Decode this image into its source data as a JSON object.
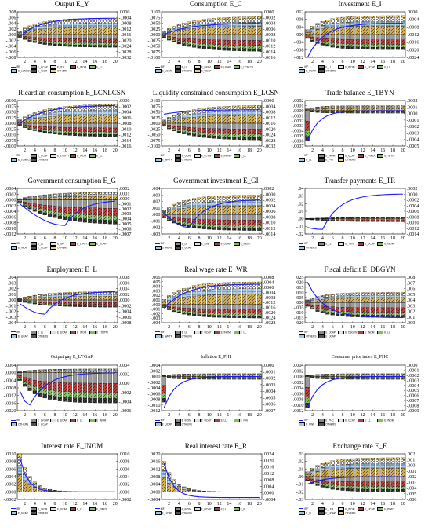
{
  "chart_data": [
    {
      "type": "bar",
      "title": "Output E_Y",
      "x": [
        2,
        4,
        6,
        8,
        10,
        12,
        14,
        16,
        18,
        20
      ],
      "ylim_left": [
        -0.008,
        0.008
      ],
      "yticks_left": [
        ".008",
        ".006",
        ".004",
        ".002",
        ".000",
        "-.002",
        "-.004",
        "-.006",
        "-.008"
      ],
      "ylim_right": [
        -0.0032,
        0.0
      ],
      "yticks_right": [
        ".0000",
        "-.0004",
        "-.0008",
        "-.0012",
        "-.0016",
        "-.0020",
        "-.0024",
        "-.0028",
        "-.0032"
      ],
      "legend": [
        "IRF",
        "E_UCAP",
        "E_ITY",
        "E_INOM",
        "E_LL",
        "E_LCNLCSN",
        "E_INOM",
        "OTHERS"
      ],
      "profile": {
        "pos": 0.0058,
        "neg": -0.0045,
        "line_start": -0.0008,
        "line_end": 0.0058,
        "line_min": -0.0008,
        "speed": 0.25
      }
    },
    {
      "type": "bar",
      "title": "Consumption E_C",
      "x": [
        2,
        4,
        6,
        8,
        10,
        12,
        14,
        16,
        18,
        20
      ],
      "ylim_left": [
        -0.01,
        0.01
      ],
      "yticks_left": [
        ".0100",
        ".0075",
        ".0050",
        ".0025",
        ".0000",
        "-.0025",
        "-.0050",
        "-.0075",
        "-.0100"
      ],
      "ylim_right": [
        -0.0016,
        0.0
      ],
      "yticks_right": [
        ".0000",
        "-.0002",
        "-.0004",
        "-.0006",
        "-.0008",
        "-.0010",
        "-.0012",
        "-.0014",
        "-.0016"
      ],
      "legend": [
        "IRF",
        "E_LL",
        "E_INOM",
        "E_UCAP",
        "E_LCNLCSN",
        "E_LCSN",
        "OTHERS",
        "E_UCAP"
      ],
      "profile": {
        "pos": 0.008,
        "neg": -0.0075,
        "line_start": 0.0,
        "line_end": 0.005,
        "line_min": -0.003,
        "speed": 0.2
      }
    },
    {
      "type": "bar",
      "title": "Investment E_I",
      "x": [
        2,
        4,
        6,
        8,
        10,
        12,
        14,
        16,
        18,
        20
      ],
      "ylim_left": [
        -0.012,
        0.012
      ],
      "yticks_left": [
        ".012",
        ".008",
        ".004",
        ".000",
        "-.004",
        "-.008",
        "-.012"
      ],
      "ylim_right": [
        -0.0024,
        0.0
      ],
      "yticks_right": [
        ".0000",
        "-.0004",
        "-.0008",
        "-.0012",
        "-.0016",
        "-.0020",
        "-.0024"
      ],
      "legend": [
        "IRF",
        "E_LL",
        "E_INOM",
        "E_UCAP",
        "E_LL",
        "E_UCAP",
        "OTHERS"
      ],
      "profile": {
        "pos": 0.01,
        "neg": -0.008,
        "line_start": -0.012,
        "line_end": 0.006,
        "line_min": -0.012,
        "speed": 0.3
      }
    },
    {
      "type": "bar",
      "title": "Ricardian consumption E_LCNLCSN",
      "x": [
        2,
        4,
        6,
        8,
        10,
        12,
        14,
        16,
        18,
        20
      ],
      "ylim_left": [
        -0.01,
        0.01
      ],
      "yticks_left": [
        ".0100",
        ".0075",
        ".0050",
        ".0025",
        ".0000",
        "-.0025",
        "-.0050",
        "-.0075",
        "-.0100"
      ],
      "ylim_right": [
        -0.0016,
        0.0
      ],
      "yticks_right": [
        ".0000",
        "-.0002",
        "-.0004",
        "-.0006",
        "-.0008",
        "-.0010",
        "-.0012",
        "-.0014",
        "-.0016"
      ],
      "legend": [
        "IRF",
        "E_UCAP",
        "E_LTRPTI",
        "E_INOM",
        "E_LL",
        "E_LCNLCSN",
        "OTHERS"
      ],
      "profile": {
        "pos": 0.0085,
        "neg": -0.006,
        "line_start": 0.0,
        "line_end": 0.008,
        "line_min": -0.0015,
        "speed": 0.2
      }
    },
    {
      "type": "bar",
      "title": "Liquidity constrained consumption E_LCSN",
      "x": [
        2,
        4,
        6,
        8,
        10,
        12,
        14,
        16,
        18,
        20
      ],
      "ylim_left": [
        -0.01,
        0.01
      ],
      "yticks_left": [
        ".0100",
        ".0075",
        ".0050",
        ".0025",
        ".0000",
        "-.0025",
        "-.0050",
        "-.0075",
        "-.0100"
      ],
      "ylim_right": [
        -0.0032,
        0.0
      ],
      "yticks_right": [
        ".0000",
        "-.0004",
        "-.0008",
        "-.0012",
        "-.0016",
        "-.0020",
        "-.0024",
        "-.0028",
        "-.0032"
      ],
      "legend": [
        "IRF",
        "E_UCAP",
        "E_LCSN",
        "E_INOM",
        "E_LL",
        "E_WRTR",
        "OTHERS"
      ],
      "profile": {
        "pos": 0.008,
        "neg": -0.0075,
        "line_start": 0.004,
        "line_end": 0.006,
        "line_min": -0.004,
        "speed": 0.2
      }
    },
    {
      "type": "bar",
      "title": "Trade balance E_TBYN",
      "x": [
        2,
        4,
        6,
        8,
        10,
        12,
        14,
        16,
        18,
        20
      ],
      "ylim_left": [
        -0.0007,
        0.0002
      ],
      "yticks_left": [
        ".0002",
        ".0001",
        ".0000",
        "-.0001",
        "-.0002",
        "-.0003",
        "-.0004",
        "-.0005",
        "-.0006",
        "-.0007"
      ],
      "ylim_right": [
        -0.0005,
        0.0002
      ],
      "yticks_right": [
        ".0002",
        ".0001",
        ".0000",
        "-.0001",
        "-.0002",
        "-.0003",
        "-.0004",
        "-.0005"
      ],
      "legend": [
        "IRF",
        "E_INOM",
        "E_UCAP",
        "E_PWEX",
        "E_TBYN",
        "E_LL",
        "E_PWI",
        "OTHERS"
      ],
      "profile": {
        "pos": 0.0001,
        "neg": -5e-05,
        "line_start": -0.0006,
        "line_end": 0.0,
        "line_min": -0.0006,
        "speed": 0.45,
        "spike": -0.0006
      }
    },
    {
      "type": "bar",
      "title": "Government consumption E_G",
      "x": [
        2,
        4,
        6,
        8,
        10,
        12,
        14,
        16,
        18,
        20
      ],
      "ylim_left": [
        -0.0012,
        0.0004
      ],
      "yticks_left": [
        ".0004",
        ".0002",
        ".0000",
        "-.0002",
        "-.0004",
        "-.0006",
        "-.0008",
        "-.0010",
        "-.0012"
      ],
      "ylim_right": [
        -0.0007,
        0.0002
      ],
      "yticks_right": [
        ".0002",
        ".0001",
        ".0000",
        "-.0001",
        "-.0002",
        "-.0003",
        "-.0004",
        "-.0005",
        "-.0006",
        "-.0007"
      ],
      "legend": [
        "IRF",
        "E_LL",
        "E_GN",
        "E_LTRPTI",
        "E_UCAP",
        "E_INOM",
        "E_UCAP",
        "OTHERS"
      ],
      "profile": {
        "pos": 0.0003,
        "neg": -0.0009,
        "line_start": 0.0,
        "line_end": 0.0,
        "line_min": -0.0009,
        "speed": 0.15,
        "dip_at": 10
      }
    },
    {
      "type": "bar",
      "title": "Government investment E_GI",
      "x": [
        2,
        4,
        6,
        8,
        10,
        12,
        14,
        16,
        18,
        20
      ],
      "ylim_left": [
        -0.003,
        0.004
      ],
      "yticks_left": [
        ".004",
        ".003",
        ".002",
        ".001",
        ".000",
        "-.001",
        "-.002",
        "-.003"
      ],
      "ylim_right": [
        -0.0014,
        0.0002
      ],
      "yticks_right": [
        ".0002",
        "-.0000",
        "-.0002",
        "-.0004",
        "-.0006",
        "-.0008",
        "-.0010",
        "-.0012",
        "-.0014"
      ],
      "legend": [
        "IRF",
        "E_LL",
        "E_IGN",
        "E_UCAP",
        "E_INOM",
        "OTHERS",
        "E_UCAP"
      ],
      "profile": {
        "pos": 0.003,
        "neg": -0.0025,
        "line_start": 0.001,
        "line_end": 0.0023,
        "line_min": -0.002,
        "speed": 0.25,
        "dip_at": 6
      }
    },
    {
      "type": "bar",
      "title": "Transfer payments E_TR",
      "x": [
        2,
        4,
        6,
        8,
        10,
        12,
        14,
        16,
        18,
        20
      ],
      "ylim_left": [
        -0.02,
        0.04
      ],
      "yticks_left": [
        ".04",
        ".03",
        ".02",
        ".01",
        ".00",
        "-.01",
        "-.02"
      ],
      "ylim_right": [
        -0.0014,
        0.0002
      ],
      "yticks_right": [
        ".0002",
        ".0000",
        "-.0002",
        "-.0004",
        "-.0006",
        "-.0008",
        "-.0010",
        "-.0012",
        "-.0014"
      ],
      "legend": [
        "IRF",
        "E_LL",
        "E_TRN",
        "E_UCAP",
        "E_INOM",
        "OTHERS"
      ],
      "profile": {
        "pos": 0.002,
        "neg": -0.004,
        "line_start": -0.01,
        "line_end": 0.033,
        "line_min": -0.014,
        "speed": 0.2,
        "dip_at": 4
      }
    },
    {
      "type": "bar",
      "title": "Employment E_L",
      "x": [
        2,
        4,
        6,
        8,
        10,
        12,
        14,
        16,
        18,
        20
      ],
      "ylim_left": [
        -0.004,
        0.004
      ],
      "yticks_left": [
        ".004",
        ".003",
        ".002",
        ".001",
        ".000",
        "-.001",
        "-.002",
        "-.003",
        "-.004"
      ],
      "ylim_right": [
        -0.0008,
        0.0008
      ],
      "yticks_right": [
        ".0008",
        ".0006",
        ".0004",
        ".0002",
        ".0000",
        "-.0002",
        "-.0004",
        "-.0006",
        "-.0008"
      ],
      "legend": [
        "IRF",
        "E_LL",
        "E_UCAP",
        "E_INOM",
        "E_LTRPTI",
        "E_UCAP",
        "OTHERS"
      ],
      "profile": {
        "pos": 0.0015,
        "neg": -0.0013,
        "line_start": 0.0,
        "line_end": 0.0015,
        "line_min": -0.0025,
        "speed": 0.2,
        "dip_at": 6
      }
    },
    {
      "type": "bar",
      "title": "Real wage rate E_WR",
      "x": [
        2,
        4,
        6,
        8,
        10,
        12,
        14,
        16,
        18,
        20
      ],
      "ylim_left": [
        -0.004,
        0.006
      ],
      "yticks_left": [
        ".006",
        ".005",
        ".004",
        ".003",
        ".002",
        ".001",
        ".000",
        "-.001",
        "-.002",
        "-.003",
        "-.004"
      ],
      "ylim_right": [
        -0.0028,
        0.0008
      ],
      "yticks_right": [
        ".0008",
        ".0004",
        ".0000",
        "-.0004",
        "-.0008",
        "-.0012",
        "-.0016",
        "-.0020",
        "-.0024",
        "-.0028"
      ],
      "legend": [
        "IRF",
        "E_LL",
        "E_UCAP",
        "E_INOM",
        "E_LL",
        "E_WRTR",
        "OTHERS"
      ],
      "profile": {
        "pos": 0.005,
        "neg": -0.003,
        "line_start": -0.001,
        "line_end": 0.0045,
        "line_min": -0.001,
        "speed": 0.25
      }
    },
    {
      "type": "bar",
      "title": "Fiscal deficit E_DBGYN",
      "x": [
        2,
        4,
        6,
        8,
        10,
        12,
        14,
        16,
        18,
        20
      ],
      "ylim_left": [
        -0.02,
        0.025
      ],
      "yticks_left": [
        ".025",
        ".020",
        ".015",
        ".010",
        ".005",
        ".000",
        "-.005",
        "-.010",
        "-.015",
        "-.020"
      ],
      "ylim_right": [
        0.0,
        0.008
      ],
      "yticks_right": [
        ".008",
        ".007",
        ".006",
        ".005",
        ".004",
        ".003",
        ".002",
        ".001",
        ".000"
      ],
      "legend": [
        "IRF",
        "E_UCAP",
        "E_DBGYN",
        "E_INOM",
        "E_LL",
        "OTHERS",
        "E_UCAP"
      ],
      "profile": {
        "pos": 0.01,
        "neg": -0.015,
        "line_start": 0.02,
        "line_end": -0.015,
        "line_min": -0.015,
        "speed": 0.3
      }
    },
    {
      "type": "bar",
      "title": "Output gap E_LYGAP",
      "x": [
        2,
        4,
        6,
        8,
        10,
        12,
        14,
        16,
        18,
        20
      ],
      "ylim_left": [
        -0.002,
        0.0004
      ],
      "yticks_left": [
        ".0004",
        ".0000",
        "-.0004",
        "-.0008",
        "-.0012",
        "-.0016",
        "-.0020"
      ],
      "ylim_right": [
        -0.0006,
        0.0004
      ],
      "yticks_right": [
        ".0004",
        ".0002",
        ".0000",
        "-.0002",
        "-.0004",
        "-.0006"
      ],
      "legend": [
        "IRF",
        "E_LYGAP",
        "E_UCAP",
        "E_LL",
        "E_INOM",
        "OTHERS",
        "E_UCAP"
      ],
      "profile": {
        "pos": 0.0002,
        "neg": -0.0016,
        "line_start": -0.0002,
        "line_end": 0.0,
        "line_min": -0.0017,
        "speed": 0.3,
        "dip_at": 3
      }
    },
    {
      "type": "bar",
      "title": "Inflation E_PHI",
      "x": [
        2,
        4,
        6,
        8,
        10,
        12,
        14,
        16,
        18,
        20
      ],
      "ylim_left": [
        -0.0012,
        0.0004
      ],
      "yticks_left": [
        ".0004",
        ".0002",
        ".0000",
        "-.0002",
        "-.0004",
        "-.0006",
        "-.0008",
        "-.0010",
        "-.0012"
      ],
      "ylim_right": [
        -0.0007,
        0.0
      ],
      "yticks_right": [
        ".0000",
        "-.0001",
        "-.0002",
        "-.0003",
        "-.0004",
        "-.0005",
        "-.0006",
        "-.0007"
      ],
      "legend": [
        "IRF",
        "E_INOM",
        "E_UCAP",
        "E_LL",
        "E_PHI",
        "E_UCAP",
        "OTHERS"
      ],
      "profile": {
        "pos": 0.0001,
        "neg": -0.0001,
        "line_start": -0.0011,
        "line_end": 0.0,
        "line_min": -0.0011,
        "speed": 0.45,
        "spike": -0.0009
      }
    },
    {
      "type": "bar",
      "title": "Consumer price index E_PHC",
      "x": [
        2,
        4,
        6,
        8,
        10,
        12,
        14,
        16,
        18,
        20
      ],
      "ylim_left": [
        -0.0012,
        0.0004
      ],
      "yticks_left": [
        ".0004",
        ".0002",
        ".0000",
        "-.0002",
        "-.0004",
        "-.0006",
        "-.0008",
        "-.0010",
        "-.0012"
      ],
      "ylim_right": [
        -0.0009,
        0.0
      ],
      "yticks_right": [
        ".0000",
        "-.0001",
        "-.0002",
        "-.0003",
        "-.0004",
        "-.0005",
        "-.0006",
        "-.0007",
        "-.0008",
        "-.0009"
      ],
      "legend": [
        "IRF",
        "E_PHC",
        "E_UCAP",
        "E_LL",
        "E_INOM",
        "E_PWI",
        "OTHERS"
      ],
      "profile": {
        "pos": 0.0001,
        "neg": -0.0001,
        "line_start": -0.0011,
        "line_end": 0.0,
        "line_min": -0.0011,
        "speed": 0.45,
        "spike": -0.0011
      }
    },
    {
      "type": "bar",
      "title": "Interest rate E_INOM",
      "x": [
        2,
        4,
        6,
        8,
        10,
        12,
        14,
        16,
        18,
        20
      ],
      "ylim_left": [
        -0.0002,
        0.001
      ],
      "yticks_left": [
        ".0010",
        ".0008",
        ".0006",
        ".0004",
        ".0002",
        ".0000",
        "-.0002"
      ],
      "ylim_right": [
        -0.0002,
        0.001
      ],
      "yticks_right": [
        ".0010",
        ".0008",
        ".0006",
        ".0004",
        ".0002",
        ".0000",
        "-.0002"
      ],
      "legend": [
        "IRF",
        "E_INOM",
        "E_UCAP",
        "E_LL",
        "E_PWEX",
        "E_UCAP",
        "OTHERS"
      ],
      "profile": {
        "pos": 0.0,
        "neg": 0.0,
        "line_start": 0.0009,
        "line_end": 0.0,
        "line_min": 0.0,
        "speed": 0.4,
        "spike": 0.001,
        "decay": true
      }
    },
    {
      "type": "bar",
      "title": "Real interest rate E_R",
      "x": [
        2,
        4,
        6,
        8,
        10,
        12,
        14,
        16,
        18,
        20
      ],
      "ylim_left": [
        -0.0004,
        0.002
      ],
      "yticks_left": [
        ".0020",
        ".0016",
        ".0012",
        ".0008",
        ".0004",
        ".0000",
        "-.0004"
      ],
      "ylim_right": [
        -0.0004,
        0.0024
      ],
      "yticks_right": [
        ".0024",
        ".0020",
        ".0016",
        ".0012",
        ".0008",
        ".0004",
        ".0000",
        "-.0004"
      ],
      "legend": [
        "IRF",
        "E_INOM",
        "E_UCAP",
        "E_LL",
        "E_R",
        "E_UCAP",
        "OTHERS"
      ],
      "profile": {
        "pos": 0.0,
        "neg": 0.0,
        "line_start": 0.0015,
        "line_end": -0.0003,
        "line_min": -0.0003,
        "speed": 0.35,
        "spike": 0.0016,
        "decay": true
      }
    },
    {
      "type": "bar",
      "title": "Exchange rate E_E",
      "x": [
        2,
        4,
        6,
        8,
        10,
        12,
        14,
        16,
        18,
        20
      ],
      "ylim_left": [
        -0.03,
        0.03
      ],
      "yticks_left": [
        ".03",
        ".02",
        ".01",
        ".00",
        "-.01",
        "-.02",
        "-.03"
      ],
      "ylim_right": [
        -0.006,
        0.002
      ],
      "yticks_right": [
        ".002",
        ".001",
        ".000",
        "-.001",
        "-.002",
        "-.003",
        "-.004",
        "-.005",
        "-.006"
      ],
      "legend": [
        "IRF",
        "E_LER",
        "E_INOM",
        "E_UCAP",
        "E_PWEX",
        "E_LL",
        "E_UCAP",
        "OTHERS"
      ],
      "profile": {
        "pos": 0.025,
        "neg": -0.02,
        "line_start": -0.01,
        "line_end": 0.0,
        "line_min": -0.01,
        "speed": 0.3
      }
    }
  ],
  "colors": {
    "line": "#1a1aff",
    "segments": [
      "#d8b050",
      "#8a8a8a",
      "#e0e0e0",
      "#b04040",
      "#80c060",
      "#a0c8e8",
      "#505050",
      "#f0d070"
    ]
  }
}
